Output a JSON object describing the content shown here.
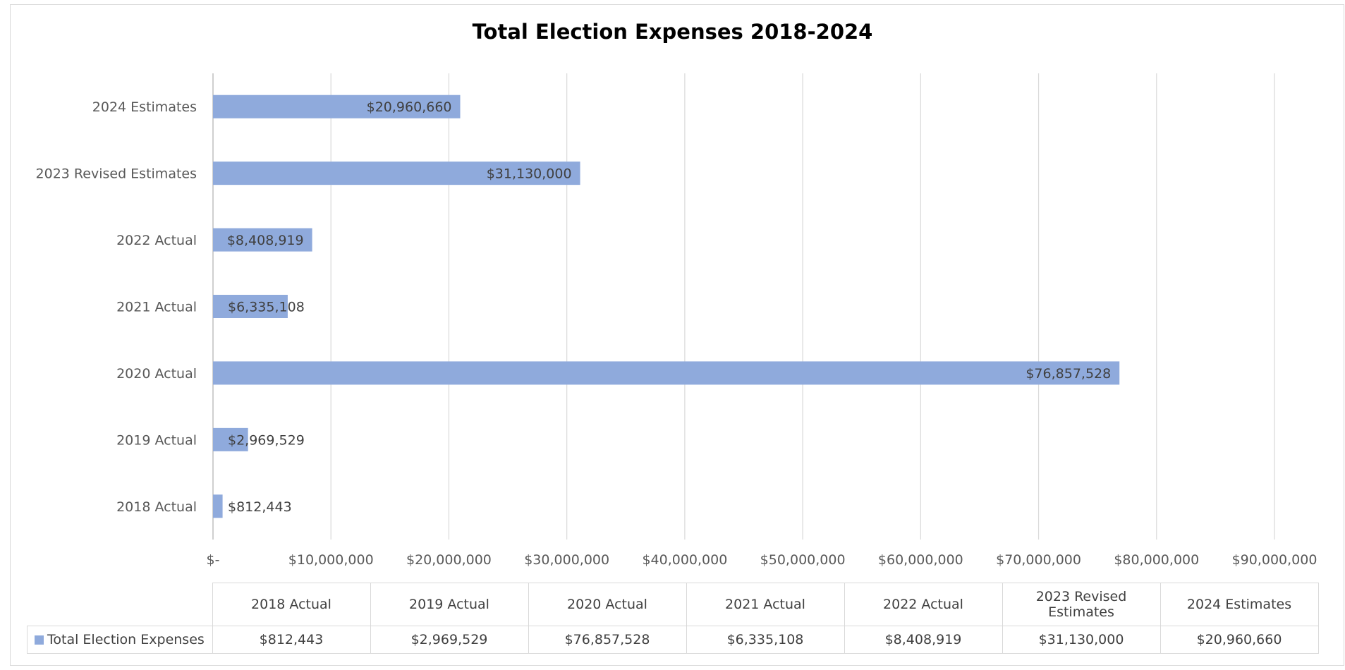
{
  "chart_data": {
    "type": "bar",
    "orientation": "horizontal",
    "title": "Total Election Expenses 2018-2024",
    "categories": [
      "2018 Actual",
      "2019 Actual",
      "2020 Actual",
      "2021 Actual",
      "2022 Actual",
      "2023 Revised Estimates",
      "2024 Estimates"
    ],
    "series": [
      {
        "name": "Total Election Expenses",
        "values": [
          812443,
          2969529,
          76857528,
          6335108,
          8408919,
          31130000,
          20960660
        ],
        "labels": [
          "$812,443",
          "$2,969,529",
          "$76,857,528",
          "$6,335,108",
          "$8,408,919",
          "$31,130,000",
          "$20,960,660"
        ],
        "color": "#8faadc"
      }
    ],
    "xlim": [
      0,
      90000000
    ],
    "x_ticks": [
      0,
      10000000,
      20000000,
      30000000,
      40000000,
      50000000,
      60000000,
      70000000,
      80000000,
      90000000
    ],
    "x_tick_labels": [
      "$-",
      "$10,000,000",
      "$20,000,000",
      "$30,000,000",
      "$40,000,000",
      "$50,000,000",
      "$60,000,000",
      "$70,000,000",
      "$80,000,000",
      "$90,000,000"
    ],
    "grid": true,
    "legend": "data-table",
    "data_table": {
      "headers": [
        "2018 Actual",
        "2019 Actual",
        "2020 Actual",
        "2021 Actual",
        "2022 Actual",
        "2023 Revised Estimates",
        "2024 Estimates"
      ],
      "row_label": "Total Election Expenses",
      "row_values": [
        "$812,443",
        "$2,969,529",
        "$76,857,528",
        "$6,335,108",
        "$8,408,919",
        "$31,130,000",
        "$20,960,660"
      ]
    }
  }
}
